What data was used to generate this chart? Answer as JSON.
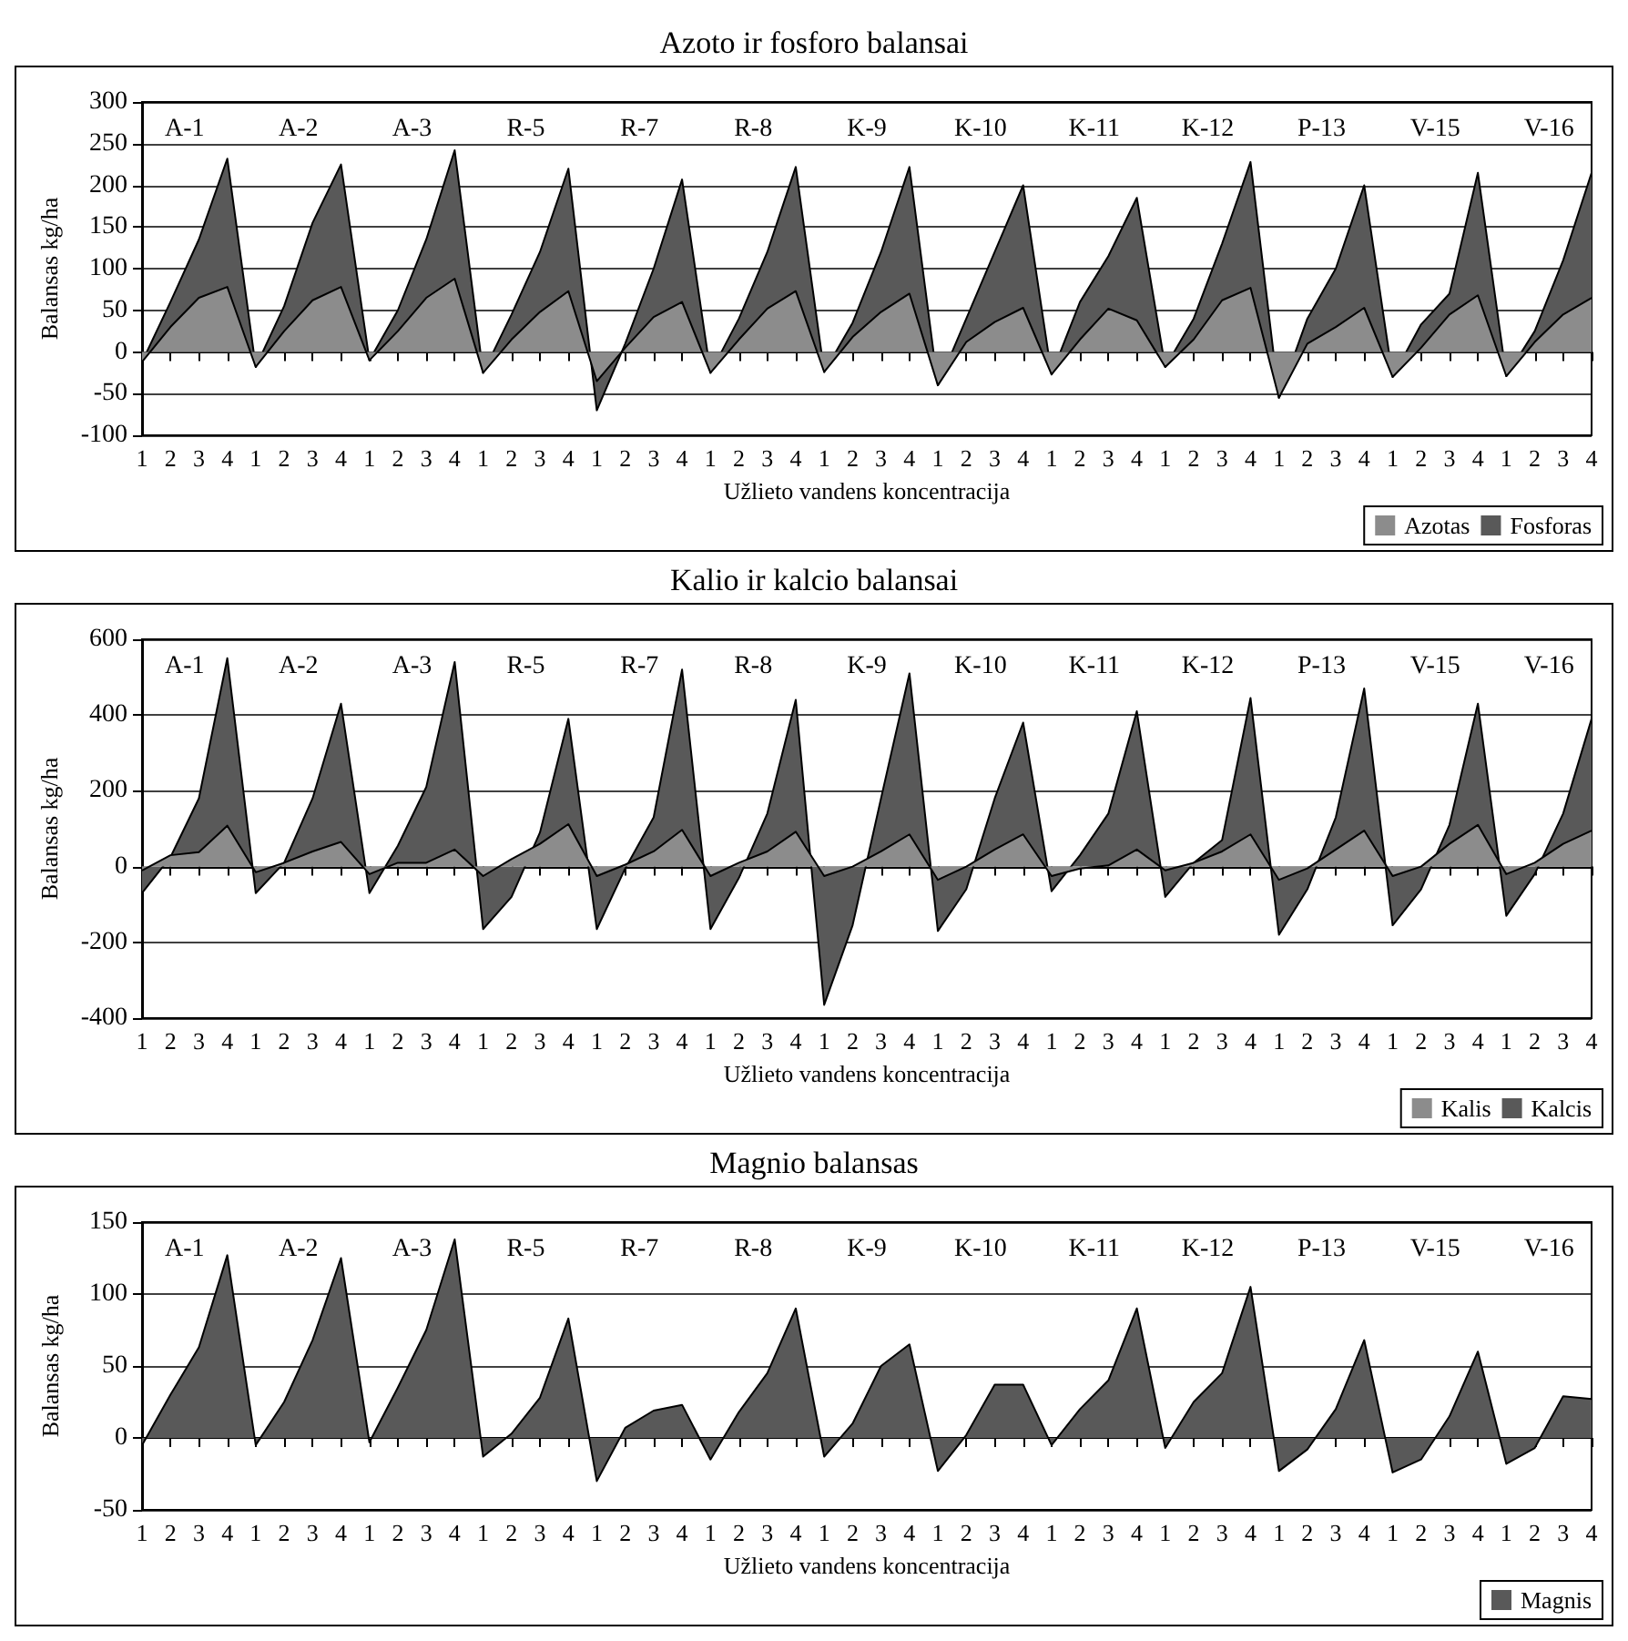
{
  "chart_data": [
    {
      "type": "area",
      "title": "Azoto ir fosforo balansai",
      "ylabel": "Balansas kg/ha",
      "xlabel": "Užlieto vandens koncentracija",
      "categories": [
        "1",
        "2",
        "3",
        "4",
        "1",
        "2",
        "3",
        "4",
        "1",
        "2",
        "3",
        "4",
        "1",
        "2",
        "3",
        "4",
        "1",
        "2",
        "3",
        "4",
        "1",
        "2",
        "3",
        "4",
        "1",
        "2",
        "3",
        "4",
        "1",
        "2",
        "3",
        "4",
        "1",
        "2",
        "3",
        "4",
        "1",
        "2",
        "3",
        "4",
        "1",
        "2",
        "3",
        "4",
        "1",
        "2",
        "3",
        "4",
        "1",
        "2",
        "3",
        "4"
      ],
      "annotations": [
        "A-1",
        "A-2",
        "A-3",
        "R-5",
        "R-7",
        "R-8",
        "K-9",
        "K-10",
        "K-11",
        "K-12",
        "P-13",
        "V-15",
        "V-16"
      ],
      "series": [
        {
          "name": "Azotas",
          "color": "#8c8c8c",
          "values": [
            -12,
            30,
            65,
            78,
            -18,
            25,
            62,
            78,
            -10,
            25,
            65,
            88,
            -25,
            15,
            48,
            73,
            -35,
            5,
            42,
            60,
            -25,
            15,
            52,
            73,
            -24,
            18,
            48,
            70,
            -40,
            12,
            36,
            53,
            -27,
            15,
            52,
            38,
            -18,
            15,
            62,
            77,
            -55,
            10,
            30,
            53,
            -30,
            5,
            45,
            68,
            -29,
            12,
            45,
            65
          ]
        },
        {
          "name": "Fosforas",
          "color": "#595959",
          "values": [
            -12,
            60,
            135,
            232,
            -18,
            55,
            155,
            225,
            -10,
            50,
            135,
            242,
            -25,
            45,
            120,
            220,
            -70,
            10,
            100,
            207,
            -25,
            40,
            120,
            222,
            -24,
            35,
            120,
            222,
            -40,
            40,
            120,
            200,
            -27,
            60,
            115,
            185,
            -18,
            40,
            130,
            228,
            -55,
            40,
            100,
            200,
            -30,
            33,
            70,
            215,
            -29,
            25,
            110,
            215
          ]
        }
      ],
      "ylim": [
        -100,
        300
      ],
      "yticks": [
        -100,
        -50,
        0,
        50,
        100,
        150,
        200,
        250,
        300
      ],
      "grid": "y",
      "legend": "bottom right"
    },
    {
      "type": "area",
      "title": "Kalio ir kalcio balansai",
      "ylabel": "Balansas kg/ha",
      "xlabel": "Užlieto vandens koncentracija",
      "categories": [
        "1",
        "2",
        "3",
        "4",
        "1",
        "2",
        "3",
        "4",
        "1",
        "2",
        "3",
        "4",
        "1",
        "2",
        "3",
        "4",
        "1",
        "2",
        "3",
        "4",
        "1",
        "2",
        "3",
        "4",
        "1",
        "2",
        "3",
        "4",
        "1",
        "2",
        "3",
        "4",
        "1",
        "2",
        "3",
        "4",
        "1",
        "2",
        "3",
        "4",
        "1",
        "2",
        "3",
        "4",
        "1",
        "2",
        "3",
        "4",
        "1",
        "2",
        "3",
        "4"
      ],
      "annotations": [
        "A-1",
        "A-2",
        "A-3",
        "R-5",
        "R-7",
        "R-8",
        "K-9",
        "K-10",
        "K-11",
        "K-12",
        "P-13",
        "V-15",
        "V-16"
      ],
      "series": [
        {
          "name": "Kalis",
          "color": "#8c8c8c",
          "values": [
            -10,
            30,
            38,
            108,
            -15,
            10,
            40,
            65,
            -20,
            10,
            10,
            45,
            -25,
            20,
            60,
            112,
            -25,
            5,
            40,
            97,
            -25,
            10,
            40,
            92,
            -25,
            0,
            40,
            85,
            -35,
            0,
            45,
            85,
            -25,
            -5,
            3,
            45,
            -10,
            10,
            40,
            85,
            -35,
            -5,
            45,
            95,
            -25,
            0,
            60,
            110,
            -20,
            10,
            60,
            95
          ]
        },
        {
          "name": "Kalcis",
          "color": "#595959",
          "values": [
            -70,
            25,
            180,
            550,
            -70,
            10,
            180,
            430,
            -70,
            55,
            210,
            540,
            -165,
            -80,
            90,
            390,
            -165,
            -5,
            130,
            520,
            -165,
            -30,
            140,
            440,
            -365,
            -155,
            180,
            510,
            -170,
            -60,
            180,
            380,
            -65,
            30,
            140,
            410,
            -80,
            10,
            70,
            445,
            -180,
            -60,
            130,
            470,
            -155,
            -60,
            110,
            430,
            -130,
            -20,
            140,
            390
          ]
        }
      ],
      "ylim": [
        -400,
        600
      ],
      "yticks": [
        -400,
        -200,
        0,
        200,
        400,
        600
      ],
      "grid": "y",
      "legend": "bottom right"
    },
    {
      "type": "area",
      "title": "Magnio balansas",
      "ylabel": "Balansas kg/ha",
      "xlabel": "Užlieto vandens koncentracija",
      "categories": [
        "1",
        "2",
        "3",
        "4",
        "1",
        "2",
        "3",
        "4",
        "1",
        "2",
        "3",
        "4",
        "1",
        "2",
        "3",
        "4",
        "1",
        "2",
        "3",
        "4",
        "1",
        "2",
        "3",
        "4",
        "1",
        "2",
        "3",
        "4",
        "1",
        "2",
        "3",
        "4",
        "1",
        "2",
        "3",
        "4",
        "1",
        "2",
        "3",
        "4",
        "1",
        "2",
        "3",
        "4",
        "1",
        "2",
        "3",
        "4",
        "1",
        "2",
        "3",
        "4"
      ],
      "annotations": [
        "A-1",
        "A-2",
        "A-3",
        "R-5",
        "R-7",
        "R-8",
        "K-9",
        "K-10",
        "K-11",
        "K-12",
        "P-13",
        "V-15",
        "V-16"
      ],
      "series": [
        {
          "name": "Magnis",
          "color": "#595959",
          "values": [
            -5,
            30,
            63,
            127,
            -5,
            25,
            68,
            125,
            -3,
            35,
            75,
            138,
            -13,
            3,
            28,
            83,
            -30,
            7,
            19,
            23,
            -15,
            18,
            45,
            90,
            -13,
            10,
            50,
            65,
            -23,
            2,
            37,
            37,
            -5,
            20,
            40,
            90,
            -7,
            25,
            45,
            105,
            -23,
            -8,
            20,
            68,
            -24,
            -15,
            15,
            60,
            -18,
            -7,
            29,
            27
          ]
        }
      ],
      "ylim": [
        -50,
        150
      ],
      "yticks": [
        -50,
        0,
        50,
        100,
        150
      ],
      "grid": "y",
      "legend": "bottom right"
    }
  ]
}
